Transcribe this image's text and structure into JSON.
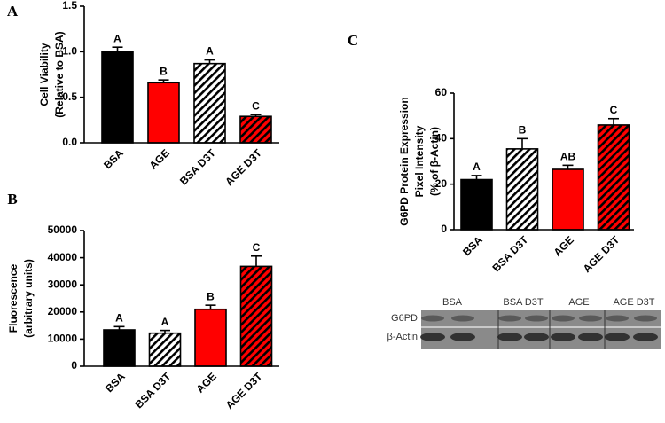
{
  "chart_data": [
    {
      "type": "bar",
      "panel": "A",
      "y_label": [
        "Cell Viability",
        "(Relative to BSA)"
      ],
      "categories": [
        "BSA",
        "AGE",
        "BSA D3T",
        "AGE D3T"
      ],
      "values": [
        1.0,
        0.66,
        0.87,
        0.29
      ],
      "errors": [
        0.05,
        0.03,
        0.04,
        0.02
      ],
      "annotations": [
        "A",
        "B",
        "A",
        "C"
      ],
      "colors": [
        "#000000",
        "#ff0000",
        "#ffffff",
        "#ff0000"
      ],
      "hatch": [
        false,
        false,
        true,
        true
      ],
      "ylim": [
        0,
        1.5
      ],
      "yticks": [
        {
          "value": 0,
          "label": "0.0"
        },
        0.5,
        {
          "value": 1,
          "label": "1.0"
        },
        1.5
      ]
    },
    {
      "type": "bar",
      "panel": "B",
      "y_label": [
        "Fluorescence",
        "(arbitrary units)"
      ],
      "categories": [
        "BSA",
        "BSA D3T",
        "AGE",
        "AGE D3T"
      ],
      "values": [
        13400,
        12200,
        21000,
        36800
      ],
      "errors": [
        1200,
        1000,
        1500,
        3800
      ],
      "annotations": [
        "A",
        "A",
        "B",
        "C"
      ],
      "colors": [
        "#000000",
        "#ffffff",
        "#ff0000",
        "#ff0000"
      ],
      "hatch": [
        false,
        true,
        false,
        true
      ],
      "ylim": [
        0,
        50000
      ],
      "yticks": [
        0,
        10000,
        20000,
        30000,
        40000,
        50000
      ]
    },
    {
      "type": "bar",
      "panel": "C",
      "y_label": [
        "G6PD Protein Expression",
        "Pixel Intensity",
        "(% of β-Actin)"
      ],
      "categories": [
        "BSA",
        "BSA D3T",
        "AGE",
        "AGE D3T"
      ],
      "values": [
        22,
        35.5,
        26.5,
        46
      ],
      "errors": [
        1.8,
        4.5,
        1.8,
        2.8
      ],
      "annotations": [
        "A",
        "B",
        "AB",
        "C"
      ],
      "colors": [
        "#000000",
        "#ffffff",
        "#ff0000",
        "#ff0000"
      ],
      "hatch": [
        false,
        true,
        false,
        true
      ],
      "ylim": [
        0,
        60
      ],
      "yticks": [
        0,
        20,
        40,
        60
      ]
    }
  ],
  "blot": {
    "lanes": [
      "BSA",
      "BSA D3T",
      "AGE",
      "AGE D3T"
    ],
    "rows": [
      "G6PD",
      "β-Actin"
    ]
  }
}
